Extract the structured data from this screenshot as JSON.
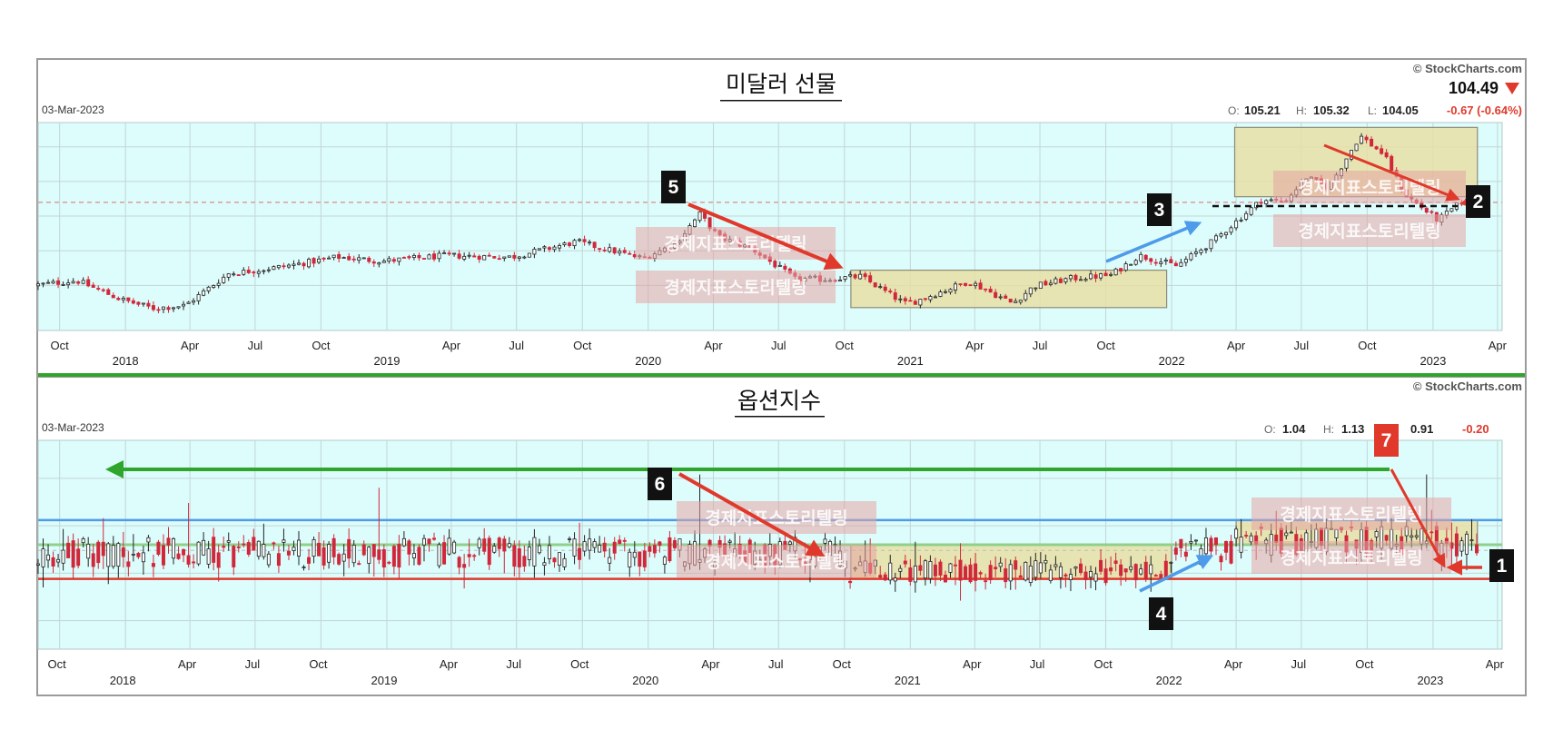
{
  "top": {
    "title": "미달러 선물",
    "date": "03-Mar-2023",
    "copyright": "© StockCharts.com",
    "last": "104.49",
    "ohlc": {
      "o_label": "O:",
      "o": "105.21",
      "h_label": "H:",
      "h": "105.32",
      "l_label": "L:",
      "l": "104.05",
      "change": "-0.67 (-0.64%)"
    }
  },
  "bottom": {
    "title": "옵션지수",
    "date": "03-Mar-2023",
    "copyright": "© StockCharts.com",
    "ohlc": {
      "o_label": "O:",
      "o": "1.04",
      "h_label": "H:",
      "h": "1.13",
      "l_value": "0.91",
      "change": "-0.20"
    }
  },
  "watermark": "경제지표스토리텔링",
  "colors": {
    "plot_bg": "#ddfcfc",
    "up": "#222222",
    "down": "#d0283a",
    "arrow_red": "#e0392b",
    "arrow_blue": "#4d9bea",
    "arrow_green": "#2fa52b",
    "box_fill": "#e8dfa4",
    "badge_red": "#e0392b",
    "badge_black": "#111111"
  },
  "chart_data": [
    {
      "type": "candlestick",
      "title": "미달러 선물",
      "frequency": "weekly",
      "x_range": [
        "2017-09-01",
        "2023-03-03"
      ],
      "x_tick_months": [
        "Oct",
        "Apr",
        "Jul",
        "Oct",
        "Apr",
        "Jul",
        "Oct",
        "Apr",
        "Jul",
        "Oct",
        "Apr",
        "Jul",
        "Oct",
        "Apr",
        "Jul",
        "Oct",
        "Apr",
        "Jul",
        "Oct",
        "Apr"
      ],
      "x_tick_dates": [
        "2017-10-01",
        "2018-04-01",
        "2018-07-01",
        "2018-10-01",
        "2019-04-01",
        "2019-07-01",
        "2019-10-01",
        "2020-04-01",
        "2020-07-01",
        "2020-10-01",
        "2021-04-01",
        "2021-07-01",
        "2021-10-01",
        "2022-04-01",
        "2022-07-01",
        "2022-10-01",
        "2023-04-01",
        "2018-01-01",
        "2019-01-01",
        "2020-01-01"
      ],
      "x_years": [
        "2018",
        "2019",
        "2020",
        "2021",
        "2022",
        "2023"
      ],
      "ylim": [
        86,
        116
      ],
      "last_close": 104.49,
      "reference_line": 104.49,
      "path_anchors": [
        [
          "2017-09-01",
          92.5
        ],
        [
          "2017-11-01",
          93.2
        ],
        [
          "2018-01-01",
          90.5
        ],
        [
          "2018-02-15",
          89.2
        ],
        [
          "2018-04-01",
          89.6
        ],
        [
          "2018-06-01",
          94.2
        ],
        [
          "2018-08-15",
          95.2
        ],
        [
          "2018-11-01",
          96.6
        ],
        [
          "2019-01-01",
          96.0
        ],
        [
          "2019-04-01",
          96.8
        ],
        [
          "2019-07-01",
          96.6
        ],
        [
          "2019-09-30",
          98.8
        ],
        [
          "2019-12-31",
          96.4
        ],
        [
          "2020-02-15",
          98.5
        ],
        [
          "2020-03-20",
          102.8
        ],
        [
          "2020-04-15",
          99.5
        ],
        [
          "2020-06-01",
          97.8
        ],
        [
          "2020-07-31",
          93.4
        ],
        [
          "2020-09-15",
          93.4
        ],
        [
          "2020-10-31",
          93.8
        ],
        [
          "2020-12-31",
          89.9
        ],
        [
          "2021-01-15",
          90.2
        ],
        [
          "2021-03-31",
          93.1
        ],
        [
          "2021-05-31",
          89.9
        ],
        [
          "2021-06-30",
          92.4
        ],
        [
          "2021-08-20",
          93.5
        ],
        [
          "2021-10-15",
          94.0
        ],
        [
          "2021-11-24",
          96.8
        ],
        [
          "2022-01-15",
          95.3
        ],
        [
          "2022-03-07",
          98.9
        ],
        [
          "2022-05-13",
          104.8
        ],
        [
          "2022-06-15",
          104.6
        ],
        [
          "2022-07-15",
          108.1
        ],
        [
          "2022-08-15",
          106.6
        ],
        [
          "2022-09-28",
          114.1
        ],
        [
          "2022-10-31",
          111.4
        ],
        [
          "2022-11-30",
          105.6
        ],
        [
          "2023-01-15",
          101.9
        ],
        [
          "2023-02-20",
          104.8
        ],
        [
          "2023-03-03",
          104.49
        ]
      ]
    },
    {
      "type": "candlestick",
      "title": "옵션지수",
      "frequency": "weekly",
      "x_range": [
        "2017-09-01",
        "2023-03-03"
      ],
      "x_years": [
        "2018",
        "2019",
        "2020",
        "2021",
        "2022",
        "2023"
      ],
      "ylim": [
        0.35,
        1.45
      ],
      "level_lines": {
        "green": 1.27,
        "blue": 1.03,
        "red": 0.72
      },
      "last": {
        "open": 1.04,
        "high": 1.13,
        "low": 0.91,
        "change": -0.2
      },
      "spikes": [
        [
          "2018-04-01",
          1.12
        ],
        [
          "2018-12-20",
          1.2
        ],
        [
          "2020-03-15",
          1.27
        ],
        [
          "2022-12-20",
          1.27
        ]
      ]
    }
  ]
}
